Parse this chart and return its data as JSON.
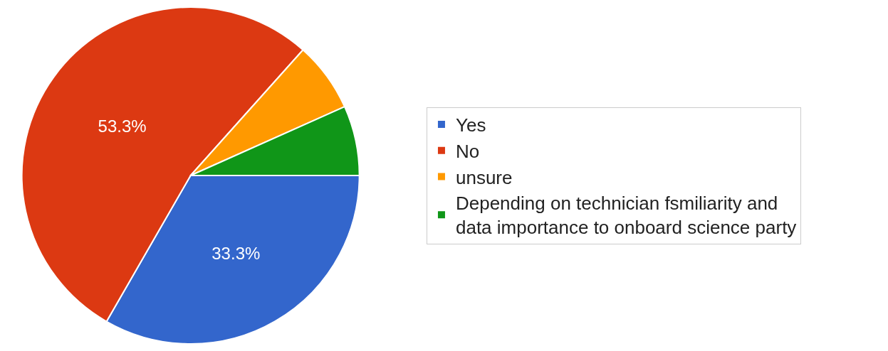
{
  "chart_data": {
    "type": "pie",
    "categories": [
      "Yes",
      "No",
      "unsure",
      "Depending on technician fsmiliarity and data importance to onboard science party"
    ],
    "values": [
      33.3,
      53.3,
      6.7,
      6.7
    ],
    "colors": [
      "#3366cc",
      "#dc3912",
      "#ff9900",
      "#109618"
    ],
    "value_labels": [
      "33.3%",
      "53.3%",
      null,
      null
    ],
    "legend": "right"
  }
}
